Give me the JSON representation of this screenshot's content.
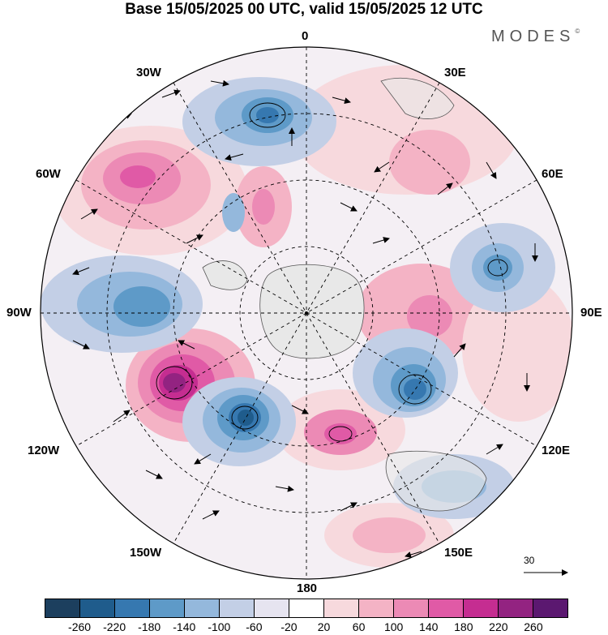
{
  "title": "Base 15/05/2025 00 UTC, valid 15/05/2025 12 UTC",
  "brand": {
    "name": "MODES",
    "mark": "©"
  },
  "longitude_labels": {
    "lon_0": "0",
    "lon_30e": "30E",
    "lon_60e": "60E",
    "lon_90e": "90E",
    "lon_120e": "120E",
    "lon_150e": "150E",
    "lon_180": "180",
    "lon_150w": "150W",
    "lon_120w": "120W",
    "lon_90w": "90W",
    "lon_60w": "60W",
    "lon_30w": "30W"
  },
  "reference_vector": {
    "label": "30"
  },
  "colorbar": {
    "colors": [
      "#1c3f5e",
      "#1f5c8c",
      "#3678b0",
      "#5e9ac8",
      "#94b8dc",
      "#c3cfe6",
      "#e6e4f0",
      "#ffffff",
      "#f7d9dd",
      "#f4b3c5",
      "#ec8ab5",
      "#e05aa6",
      "#c52d91",
      "#932381",
      "#5b1870"
    ],
    "labels": [
      "-260",
      "-220",
      "-180",
      "-140",
      "-100",
      "-60",
      "-20",
      "20",
      "60",
      "100",
      "140",
      "180",
      "220",
      "260"
    ]
  },
  "colors": {
    "land": "#e8e8e8",
    "coast": "#555555",
    "grid": "#000000"
  }
}
